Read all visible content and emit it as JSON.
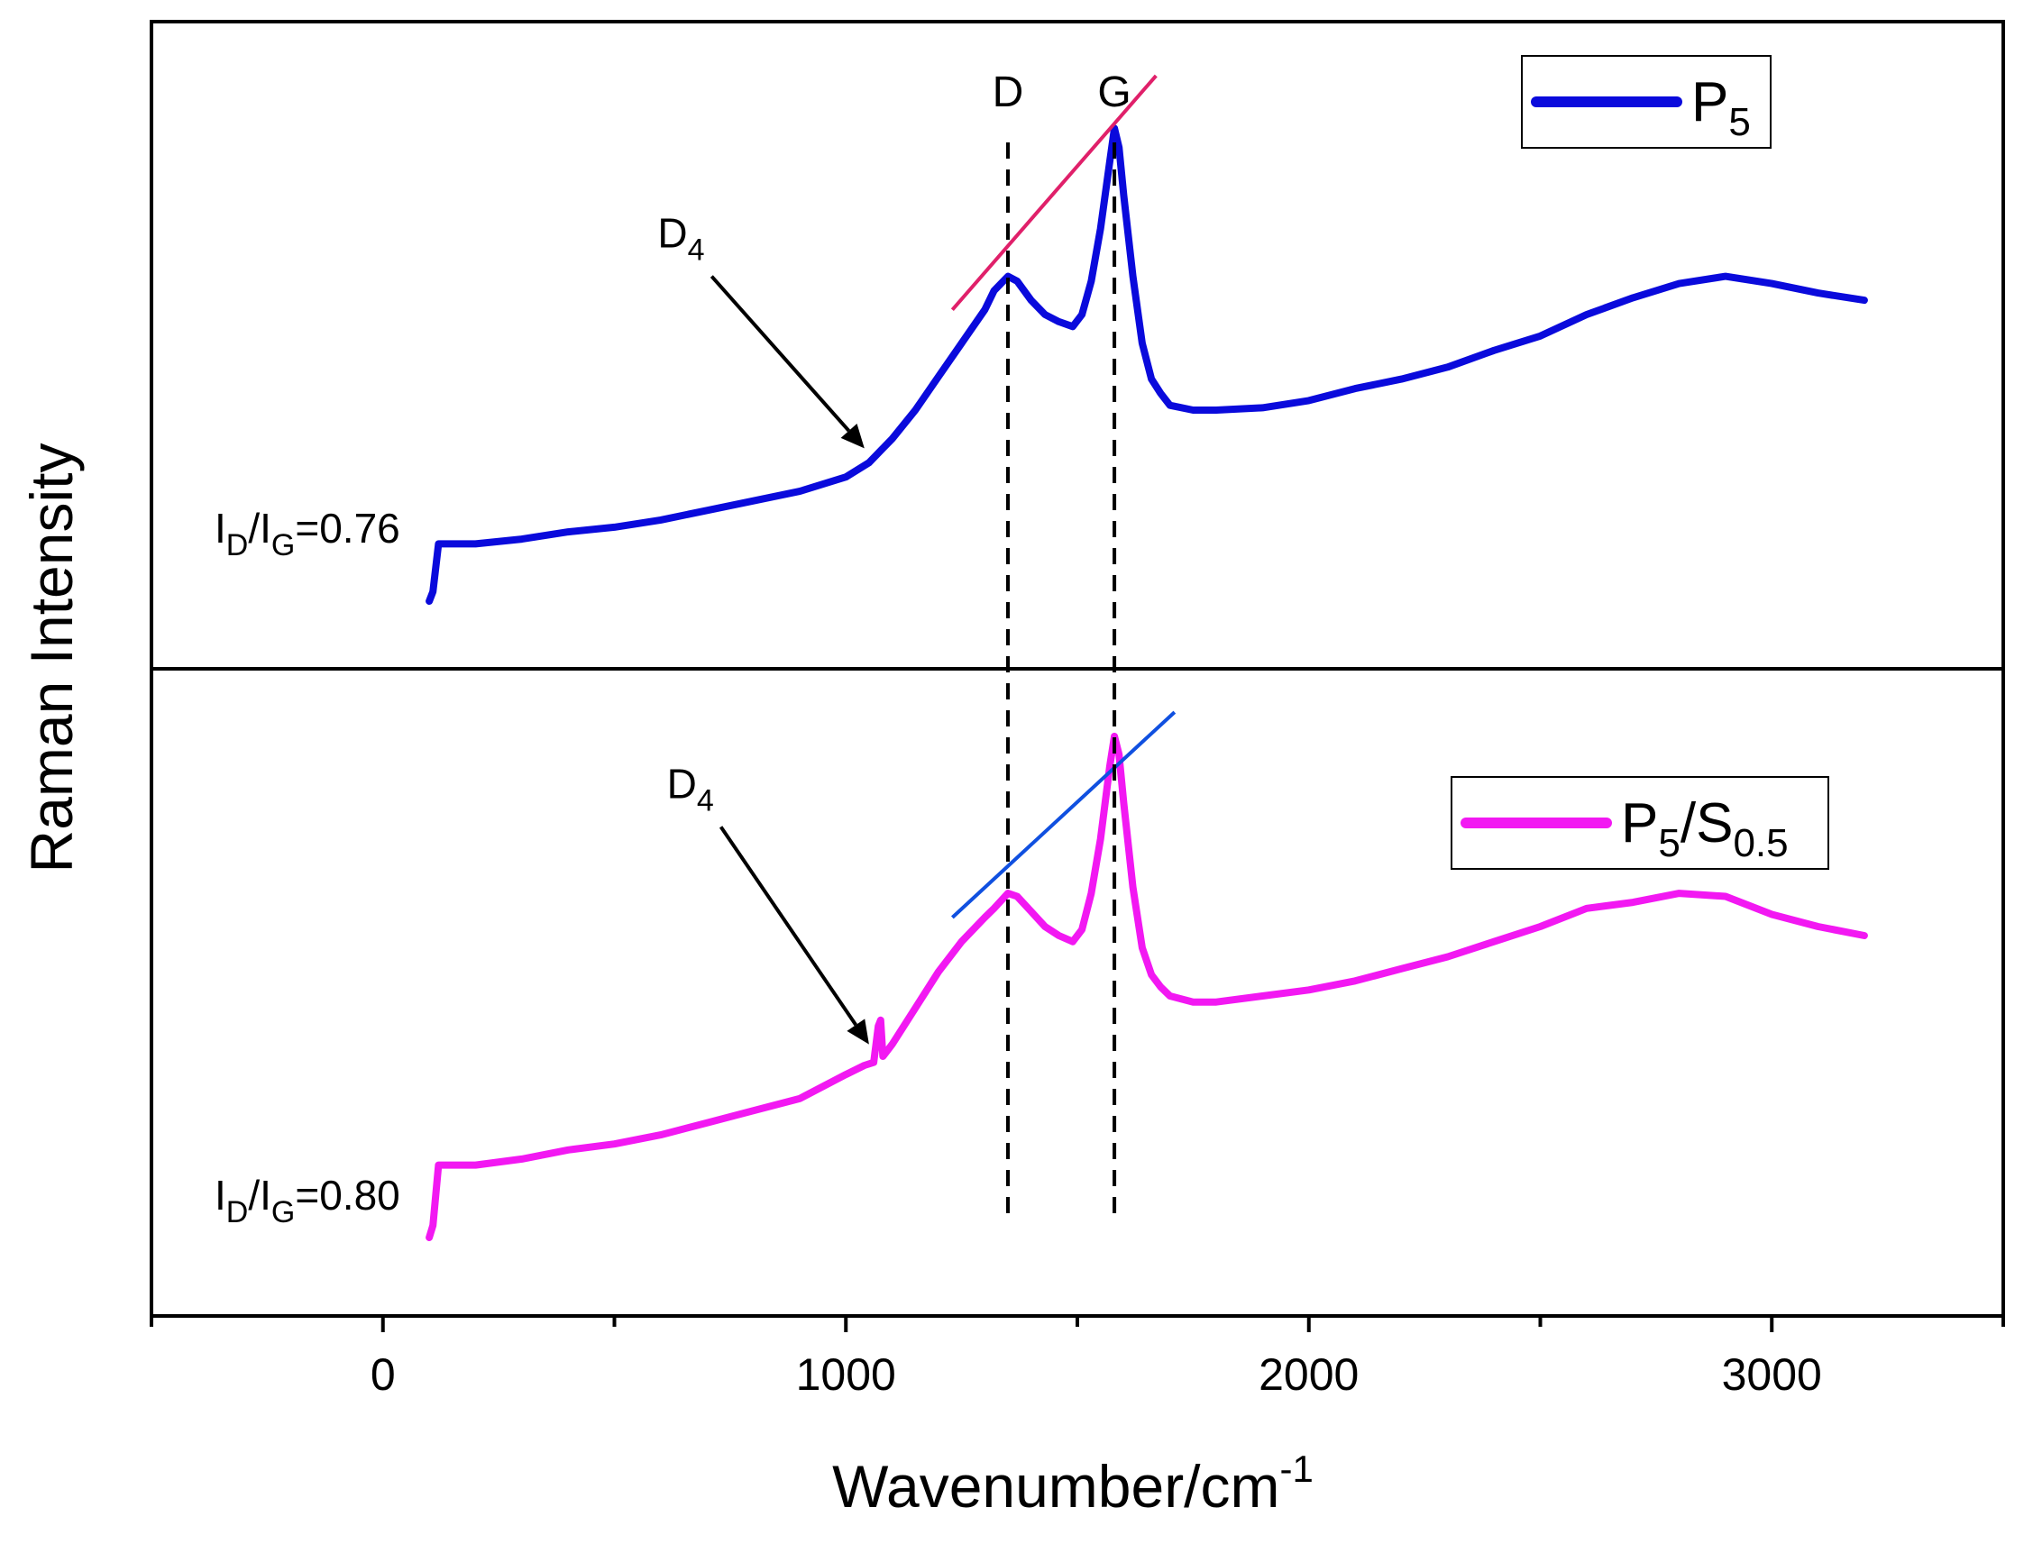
{
  "chart_data": {
    "type": "line",
    "layout": "stacked-panels",
    "xlabel": "Wavenumber/cm",
    "xlabel_sup": "-1",
    "ylabel": "Raman Intensity",
    "xlim": [
      -500,
      3500
    ],
    "xticks": [
      0,
      1000,
      2000,
      3000
    ],
    "xtick_labels": [
      "0",
      "1000",
      "2000",
      "3000"
    ],
    "xminor_ticks": [
      -500,
      500,
      1500,
      2500,
      3500
    ],
    "grid": false,
    "peak_markers": [
      {
        "label": "D",
        "x": 1350
      },
      {
        "label": "G",
        "x": 1580
      }
    ],
    "panels": [
      {
        "position": "top",
        "series_name": "P5",
        "color": "#0a0adc",
        "ylim": [
          0,
          1
        ],
        "legend": {
          "main": "P",
          "sub": "5",
          "tail": "",
          "tail_sub": "",
          "placement": "top-right"
        },
        "ratio": {
          "main1": "I",
          "sub1": "D",
          "slash": "/I",
          "sub2": "G",
          "value": "=0.76"
        },
        "d4_label": {
          "main": "D",
          "sub": "4"
        },
        "d4_arrow": {
          "from": [
            710,
            0.78
          ],
          "to": [
            1040,
            0.42
          ]
        },
        "tangent": {
          "color": "#e0206a",
          "from": [
            1230,
            0.71
          ],
          "to": [
            1670,
            1.2
          ]
        },
        "x": [
          100,
          108,
          120,
          150,
          200,
          300,
          400,
          500,
          600,
          700,
          800,
          900,
          1000,
          1050,
          1080,
          1100,
          1150,
          1200,
          1250,
          1300,
          1320,
          1350,
          1370,
          1400,
          1430,
          1460,
          1490,
          1510,
          1530,
          1550,
          1570,
          1580,
          1590,
          1600,
          1620,
          1640,
          1660,
          1680,
          1700,
          1750,
          1800,
          1900,
          2000,
          2100,
          2200,
          2300,
          2400,
          2500,
          2600,
          2700,
          2800,
          2900,
          3000,
          3100,
          3200
        ],
        "values": [
          0.1,
          0.12,
          0.22,
          0.22,
          0.22,
          0.23,
          0.245,
          0.255,
          0.27,
          0.29,
          0.31,
          0.33,
          0.36,
          0.39,
          0.42,
          0.44,
          0.5,
          0.57,
          0.64,
          0.71,
          0.75,
          0.78,
          0.77,
          0.73,
          0.7,
          0.685,
          0.675,
          0.7,
          0.77,
          0.88,
          1.02,
          1.09,
          1.05,
          0.95,
          0.78,
          0.64,
          0.565,
          0.535,
          0.51,
          0.5,
          0.5,
          0.505,
          0.52,
          0.545,
          0.565,
          0.59,
          0.625,
          0.655,
          0.7,
          0.735,
          0.765,
          0.78,
          0.765,
          0.745,
          0.73
        ]
      },
      {
        "position": "bottom",
        "series_name": "P5/S0.5",
        "color": "#f218f2",
        "ylim": [
          0,
          1
        ],
        "legend": {
          "main": "P",
          "sub": "5",
          "tail": "/S",
          "tail_sub": "0.5",
          "placement": "top-right"
        },
        "ratio": {
          "main1": "I",
          "sub1": "D",
          "slash": "/I",
          "sub2": "G",
          "value": "=0.80"
        },
        "d4_label": {
          "main": "D",
          "sub": "4"
        },
        "d4_arrow": {
          "from": [
            730,
            0.78
          ],
          "to": [
            1050,
            0.42
          ]
        },
        "tangent": {
          "color": "#1050e0",
          "from": [
            1230,
            0.63
          ],
          "to": [
            1710,
            0.97
          ]
        },
        "x": [
          100,
          108,
          120,
          150,
          200,
          300,
          400,
          500,
          600,
          700,
          800,
          900,
          1000,
          1040,
          1060,
          1070,
          1075,
          1080,
          1090,
          1100,
          1150,
          1200,
          1250,
          1300,
          1320,
          1350,
          1370,
          1400,
          1430,
          1460,
          1490,
          1510,
          1530,
          1550,
          1570,
          1580,
          1590,
          1600,
          1620,
          1640,
          1660,
          1680,
          1700,
          1750,
          1800,
          1900,
          2000,
          2100,
          2200,
          2300,
          2400,
          2500,
          2600,
          2700,
          2800,
          2900,
          3000,
          3100,
          3200
        ],
        "values": [
          0.1,
          0.12,
          0.22,
          0.22,
          0.22,
          0.23,
          0.245,
          0.255,
          0.27,
          0.29,
          0.31,
          0.33,
          0.37,
          0.385,
          0.39,
          0.45,
          0.46,
          0.4,
          0.41,
          0.42,
          0.48,
          0.54,
          0.59,
          0.63,
          0.645,
          0.67,
          0.665,
          0.64,
          0.615,
          0.6,
          0.59,
          0.61,
          0.67,
          0.76,
          0.88,
          0.93,
          0.9,
          0.82,
          0.68,
          0.58,
          0.535,
          0.515,
          0.5,
          0.49,
          0.49,
          0.5,
          0.51,
          0.525,
          0.545,
          0.565,
          0.59,
          0.615,
          0.645,
          0.655,
          0.67,
          0.665,
          0.635,
          0.615,
          0.6
        ]
      }
    ]
  }
}
